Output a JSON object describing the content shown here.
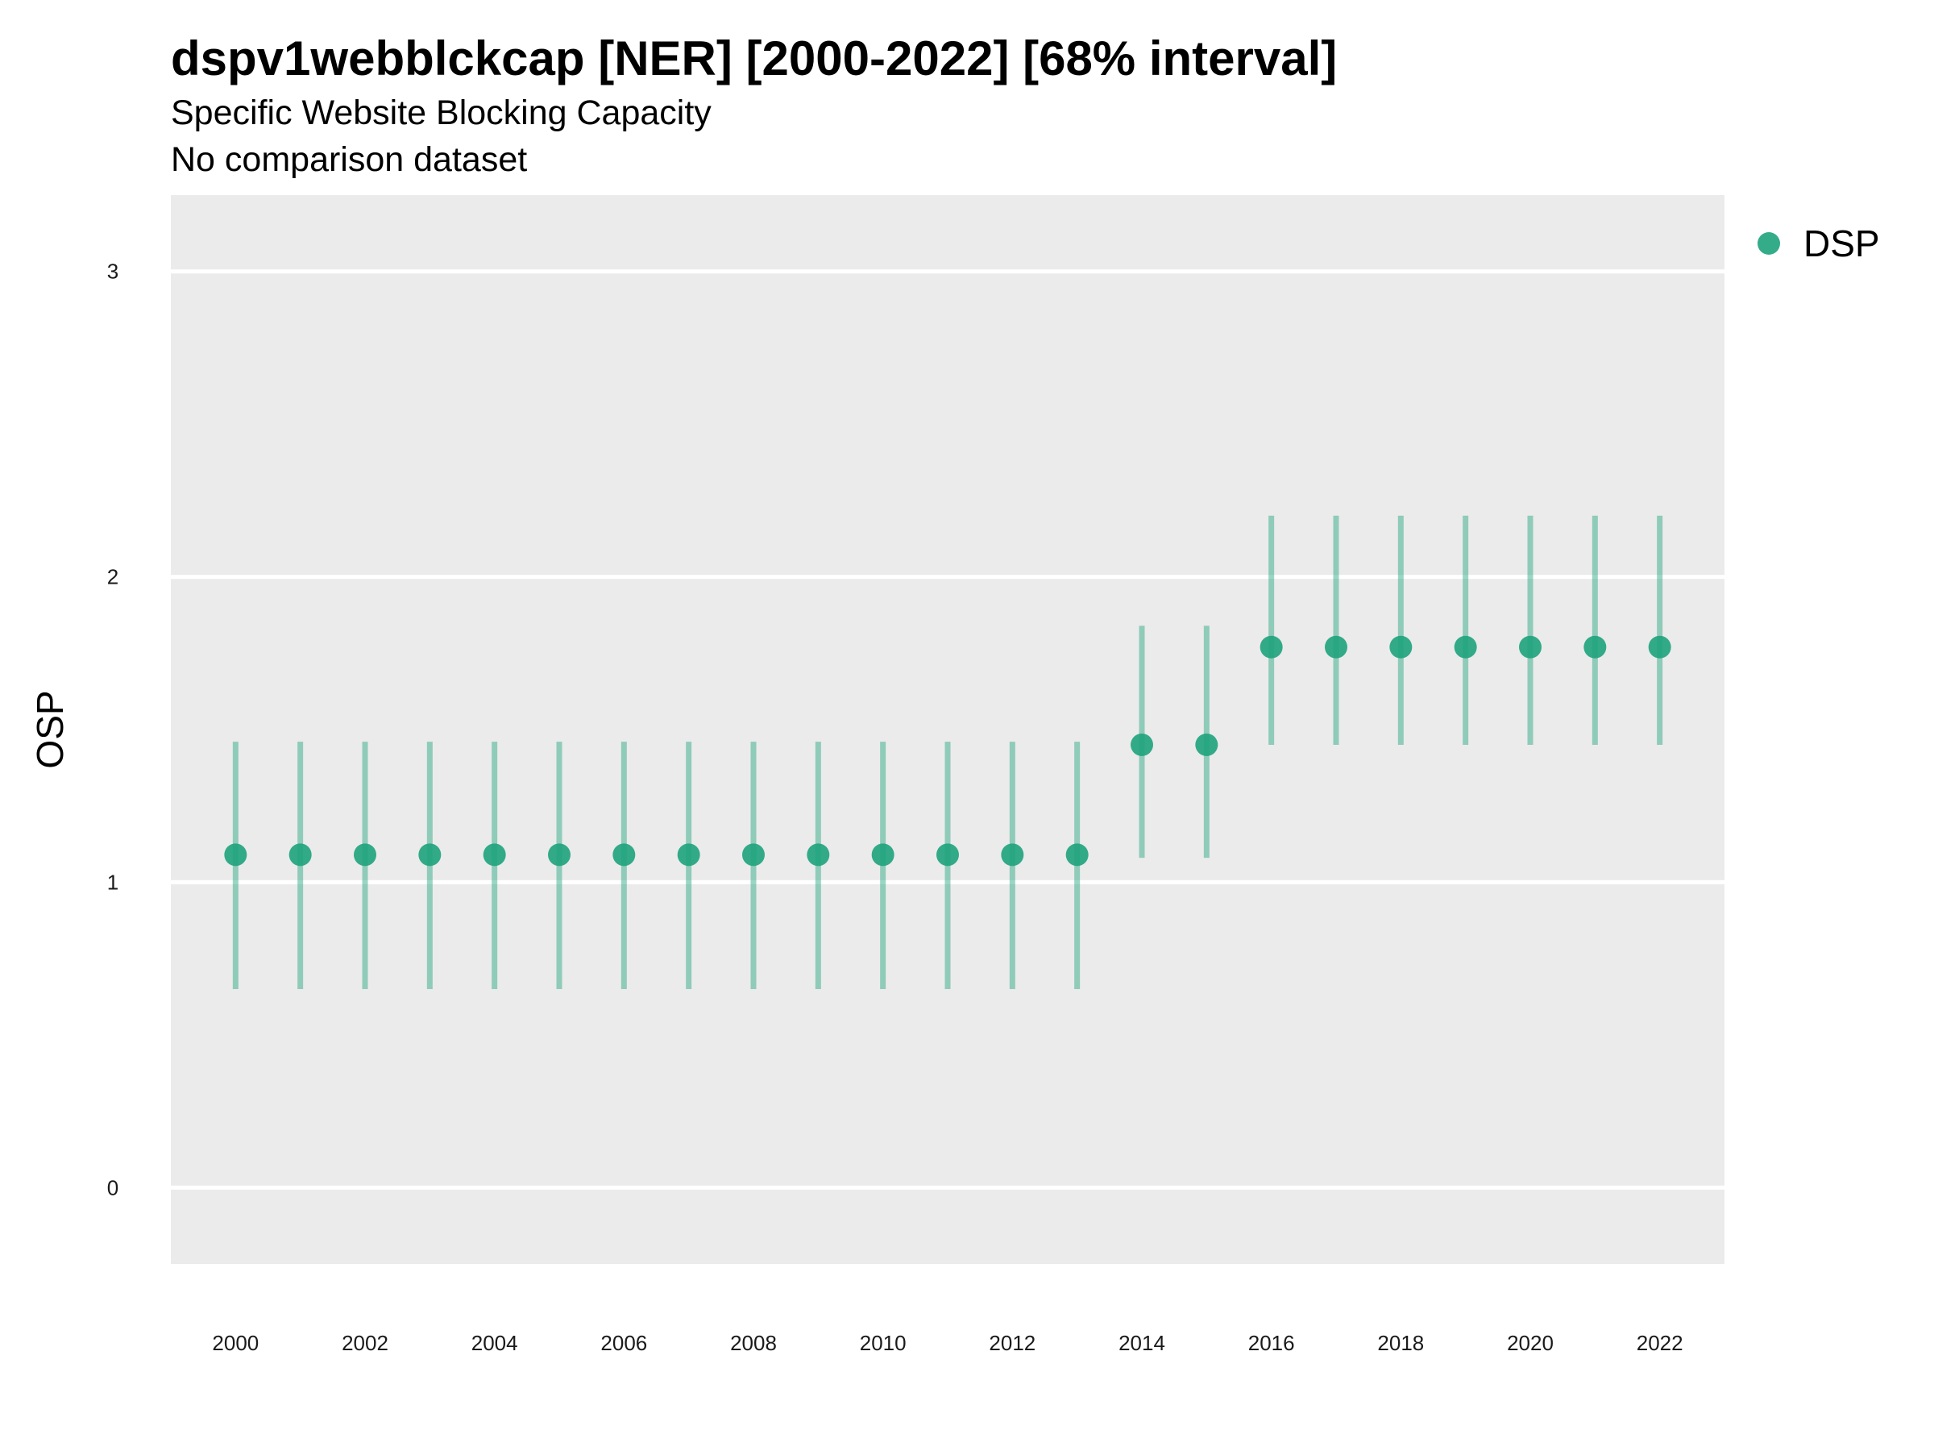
{
  "chart_data": {
    "type": "scatter",
    "title": "dspv1webblckcap [NER] [2000-2022] [68% interval]",
    "subtitle": "Specific Website Blocking Capacity",
    "caption": "No comparison dataset",
    "ylabel": "OSP",
    "xlabel": "",
    "xlim": [
      1999,
      2023
    ],
    "ylim": [
      -0.25,
      3.25
    ],
    "x_ticks": [
      2000,
      2002,
      2004,
      2006,
      2008,
      2010,
      2012,
      2014,
      2016,
      2018,
      2020,
      2022
    ],
    "y_ticks": [
      0,
      1,
      2,
      3
    ],
    "grid": true,
    "legend": {
      "position": "right-top",
      "entries": [
        "DSP"
      ]
    },
    "series": [
      {
        "name": "DSP",
        "color": "#1ea37c",
        "x": [
          2000,
          2001,
          2002,
          2003,
          2004,
          2005,
          2006,
          2007,
          2008,
          2009,
          2010,
          2011,
          2012,
          2013,
          2014,
          2015,
          2016,
          2017,
          2018,
          2019,
          2020,
          2021,
          2022
        ],
        "y": [
          1.09,
          1.09,
          1.09,
          1.09,
          1.09,
          1.09,
          1.09,
          1.09,
          1.09,
          1.09,
          1.09,
          1.09,
          1.09,
          1.09,
          1.45,
          1.45,
          1.77,
          1.77,
          1.77,
          1.77,
          1.77,
          1.77,
          1.77
        ],
        "lower": [
          0.65,
          0.65,
          0.65,
          0.65,
          0.65,
          0.65,
          0.65,
          0.65,
          0.65,
          0.65,
          0.65,
          0.65,
          0.65,
          0.65,
          1.08,
          1.08,
          1.45,
          1.45,
          1.45,
          1.45,
          1.45,
          1.45,
          1.45
        ],
        "upper": [
          1.46,
          1.46,
          1.46,
          1.46,
          1.46,
          1.46,
          1.46,
          1.46,
          1.46,
          1.46,
          1.46,
          1.46,
          1.46,
          1.46,
          1.84,
          1.84,
          2.2,
          2.2,
          2.2,
          2.2,
          2.2,
          2.2,
          2.2
        ]
      }
    ]
  }
}
